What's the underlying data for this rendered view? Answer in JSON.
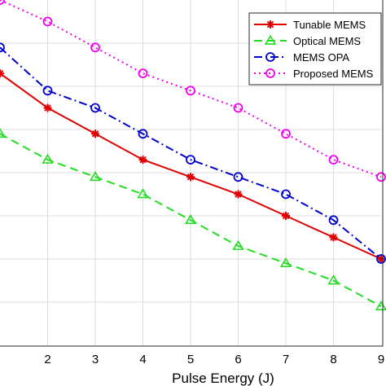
{
  "chart_data": {
    "type": "line",
    "title": "",
    "xlabel": "Pulse Energy (J)",
    "ylabel": "",
    "xlim": [
      1,
      9
    ],
    "ylim": [
      0,
      8
    ],
    "x_ticks": [
      2,
      3,
      4,
      5,
      6,
      7,
      8,
      9
    ],
    "x_tick_labels": [
      "2",
      "3",
      "4",
      "5",
      "6",
      "7",
      "8",
      "9"
    ],
    "grid": true,
    "legend_position": "top-right",
    "x": [
      1,
      2,
      3,
      4,
      5,
      6,
      7,
      8,
      9
    ],
    "series": [
      {
        "name": "Tunable MEMS",
        "values": [
          6.3,
          5.5,
          4.9,
          4.3,
          3.9,
          3.5,
          3.0,
          2.5,
          2.0
        ],
        "color": "#e00000",
        "line_style": "solid",
        "marker": "asterisk"
      },
      {
        "name": "Optical MEMS",
        "values": [
          4.9,
          4.3,
          3.9,
          3.5,
          2.9,
          2.3,
          1.9,
          1.5,
          0.9
        ],
        "color": "#22dd22",
        "line_style": "dashed",
        "marker": "triangle"
      },
      {
        "name": "MEMS OPA",
        "values": [
          6.9,
          5.9,
          5.5,
          4.9,
          4.3,
          3.9,
          3.5,
          2.9,
          2.0
        ],
        "color": "#0000cc",
        "line_style": "dashdot",
        "marker": "circle"
      },
      {
        "name": "Proposed MEMS",
        "values": [
          8.0,
          7.5,
          6.9,
          6.3,
          5.9,
          5.5,
          4.9,
          4.3,
          3.9
        ],
        "color": "#ee00ee",
        "line_style": "dotted",
        "marker": "circle"
      }
    ]
  }
}
